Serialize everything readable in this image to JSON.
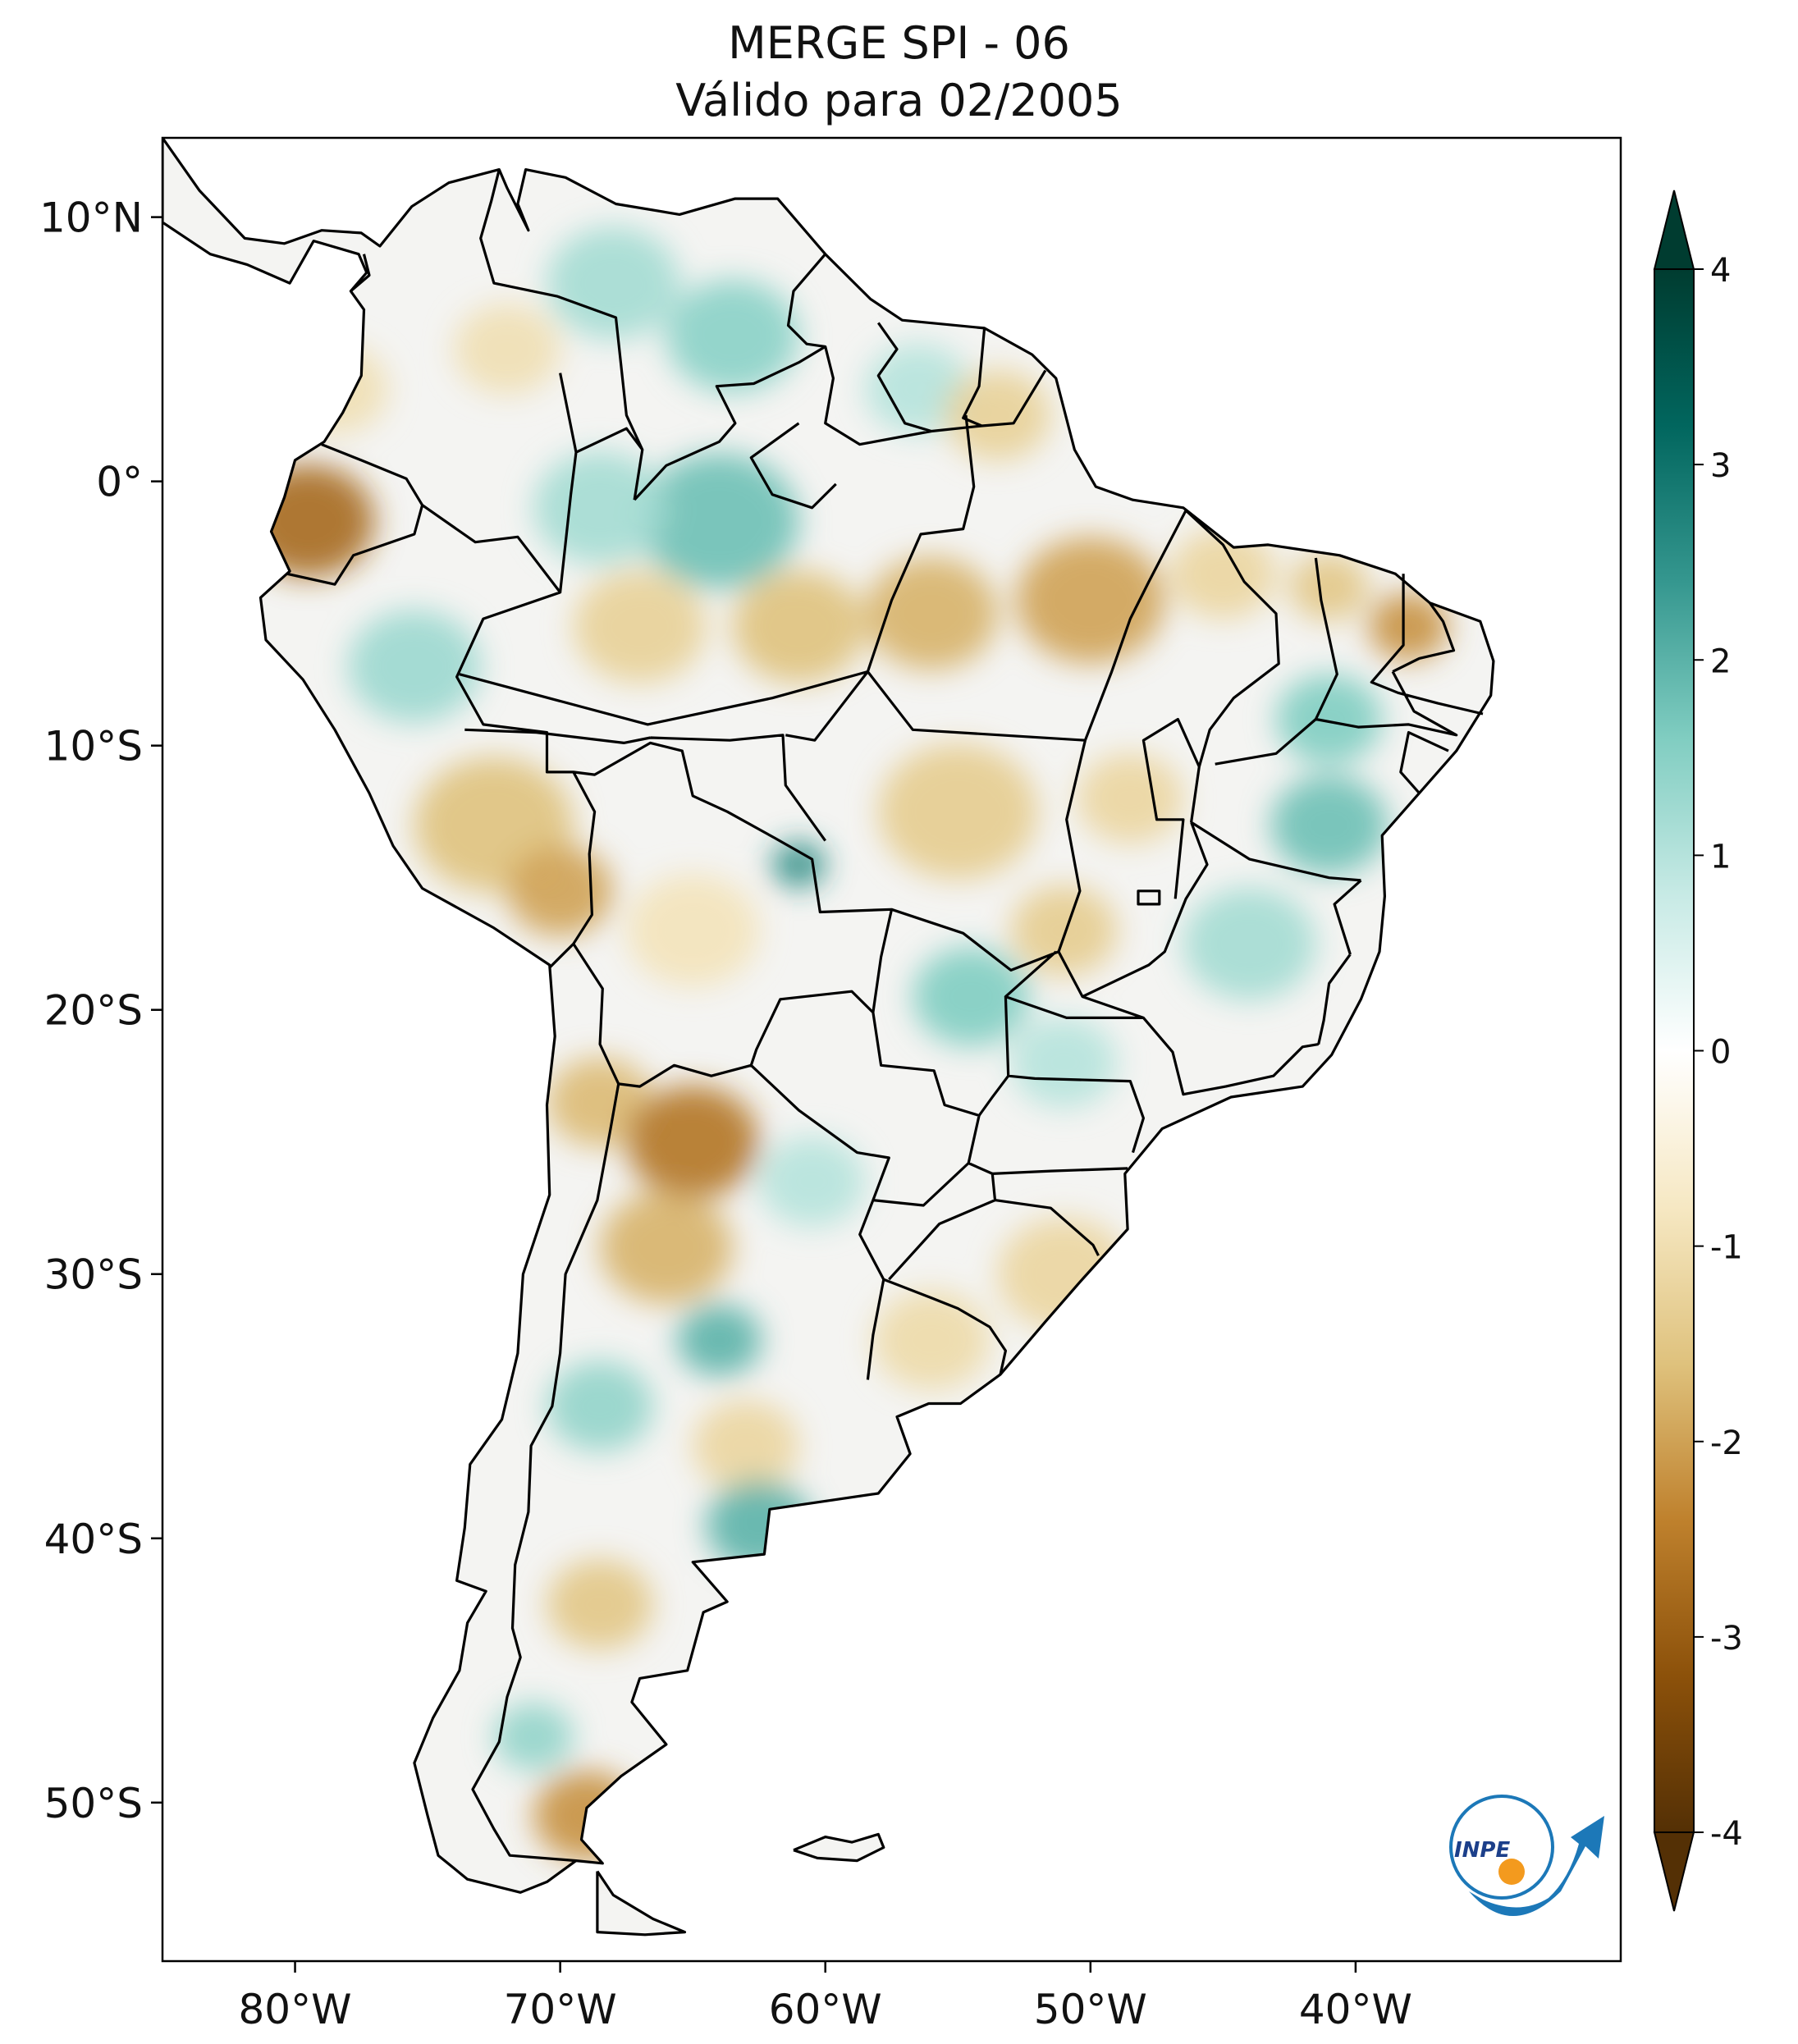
{
  "title": "MERGE   SPI - 06",
  "subtitle": "Válido para 02/2005",
  "map": {
    "lon_range": [
      -85,
      -30
    ],
    "lat_range": [
      -56,
      13
    ],
    "lon_ticks": [
      {
        "value": -80,
        "label": "80°W"
      },
      {
        "value": -70,
        "label": "70°W"
      },
      {
        "value": -60,
        "label": "60°W"
      },
      {
        "value": -50,
        "label": "50°W"
      },
      {
        "value": -40,
        "label": "40°W"
      }
    ],
    "lat_ticks": [
      {
        "value": 10,
        "label": "10°N"
      },
      {
        "value": 0,
        "label": "0°"
      },
      {
        "value": -10,
        "label": "10°S"
      },
      {
        "value": -20,
        "label": "20°S"
      },
      {
        "value": -30,
        "label": "30°S"
      },
      {
        "value": -40,
        "label": "40°S"
      },
      {
        "value": -50,
        "label": "50°S"
      }
    ],
    "anomaly_patches": [
      {
        "lon": -79.5,
        "lat": -1.5,
        "spi": -2.8,
        "r": 2.5
      },
      {
        "lon": -78.5,
        "lat": 3.5,
        "spi": -1.0,
        "r": 2.0
      },
      {
        "lon": -72.0,
        "lat": 5.0,
        "spi": -1.0,
        "r": 2.0
      },
      {
        "lon": -68.0,
        "lat": 7.5,
        "spi": 1.2,
        "r": 2.5
      },
      {
        "lon": -63.5,
        "lat": 5.5,
        "spi": 1.5,
        "r": 2.5
      },
      {
        "lon": -56.5,
        "lat": 3.5,
        "spi": 1.0,
        "r": 2.0
      },
      {
        "lon": -53.5,
        "lat": 2.5,
        "spi": -1.3,
        "r": 2.0
      },
      {
        "lon": -64.0,
        "lat": -1.5,
        "spi": 1.8,
        "r": 3.0
      },
      {
        "lon": -68.5,
        "lat": -1.0,
        "spi": 1.2,
        "r": 2.5
      },
      {
        "lon": -67.0,
        "lat": -5.5,
        "spi": -1.3,
        "r": 2.5
      },
      {
        "lon": -61.0,
        "lat": -5.5,
        "spi": -1.6,
        "r": 2.5
      },
      {
        "lon": -56.0,
        "lat": -5.0,
        "spi": -1.8,
        "r": 2.5
      },
      {
        "lon": -50.0,
        "lat": -4.5,
        "spi": -2.0,
        "r": 2.8
      },
      {
        "lon": -45.0,
        "lat": -3.5,
        "spi": -1.2,
        "r": 2.0
      },
      {
        "lon": -41.0,
        "lat": -4.0,
        "spi": -1.5,
        "r": 1.5
      },
      {
        "lon": -38.0,
        "lat": -5.5,
        "spi": -2.2,
        "r": 1.5
      },
      {
        "lon": -75.5,
        "lat": -7.0,
        "spi": 1.3,
        "r": 2.5
      },
      {
        "lon": -72.5,
        "lat": -13.0,
        "spi": -1.6,
        "r": 3.0
      },
      {
        "lon": -70.0,
        "lat": -15.5,
        "spi": -2.0,
        "r": 2.0
      },
      {
        "lon": -61.0,
        "lat": -14.5,
        "spi": 2.6,
        "r": 1.0
      },
      {
        "lon": -55.0,
        "lat": -12.5,
        "spi": -1.4,
        "r": 3.0
      },
      {
        "lon": -48.5,
        "lat": -12.0,
        "spi": -1.2,
        "r": 2.0
      },
      {
        "lon": -41.0,
        "lat": -9.0,
        "spi": 1.6,
        "r": 2.0
      },
      {
        "lon": -41.0,
        "lat": -13.0,
        "spi": 1.8,
        "r": 2.2
      },
      {
        "lon": -44.0,
        "lat": -17.5,
        "spi": 1.2,
        "r": 2.5
      },
      {
        "lon": -51.0,
        "lat": -17.0,
        "spi": -1.4,
        "r": 2.0
      },
      {
        "lon": -54.5,
        "lat": -19.5,
        "spi": 1.6,
        "r": 2.2
      },
      {
        "lon": -65.0,
        "lat": -17.0,
        "spi": -0.9,
        "r": 2.5
      },
      {
        "lon": -68.5,
        "lat": -23.5,
        "spi": -1.7,
        "r": 2.0
      },
      {
        "lon": -65.0,
        "lat": -25.0,
        "spi": -2.6,
        "r": 2.5
      },
      {
        "lon": -66.0,
        "lat": -29.0,
        "spi": -1.8,
        "r": 2.5
      },
      {
        "lon": -60.5,
        "lat": -26.5,
        "spi": 1.0,
        "r": 2.0
      },
      {
        "lon": -51.0,
        "lat": -22.0,
        "spi": 1.0,
        "r": 2.0
      },
      {
        "lon": -51.0,
        "lat": -30.0,
        "spi": -1.2,
        "r": 2.5
      },
      {
        "lon": -56.0,
        "lat": -32.5,
        "spi": -1.1,
        "r": 2.2
      },
      {
        "lon": -64.0,
        "lat": -32.5,
        "spi": 2.0,
        "r": 1.6
      },
      {
        "lon": -68.5,
        "lat": -35.0,
        "spi": 1.4,
        "r": 2.0
      },
      {
        "lon": -63.0,
        "lat": -36.5,
        "spi": -1.2,
        "r": 2.0
      },
      {
        "lon": -62.5,
        "lat": -39.5,
        "spi": 2.0,
        "r": 2.0
      },
      {
        "lon": -68.5,
        "lat": -42.5,
        "spi": -1.5,
        "r": 2.0
      },
      {
        "lon": -71.0,
        "lat": -47.5,
        "spi": 1.4,
        "r": 1.5
      },
      {
        "lon": -69.0,
        "lat": -50.5,
        "spi": -2.2,
        "r": 2.0
      }
    ]
  },
  "colorbar": {
    "ticks": [
      4,
      3,
      2,
      1,
      0,
      -1,
      -2,
      -3,
      -4
    ],
    "tick_labels": [
      "4",
      "3",
      "2",
      "1",
      "0",
      "-1",
      "-2",
      "-3",
      "-4"
    ],
    "range": [
      -4,
      4
    ],
    "colors": [
      "#543005",
      "#8c510a",
      "#bf812d",
      "#dfc27d",
      "#f6e8c3",
      "#ffffff",
      "#c7eae5",
      "#80cdc1",
      "#35978f",
      "#01665e",
      "#003c30"
    ]
  },
  "logo": {
    "text": "INPE"
  }
}
